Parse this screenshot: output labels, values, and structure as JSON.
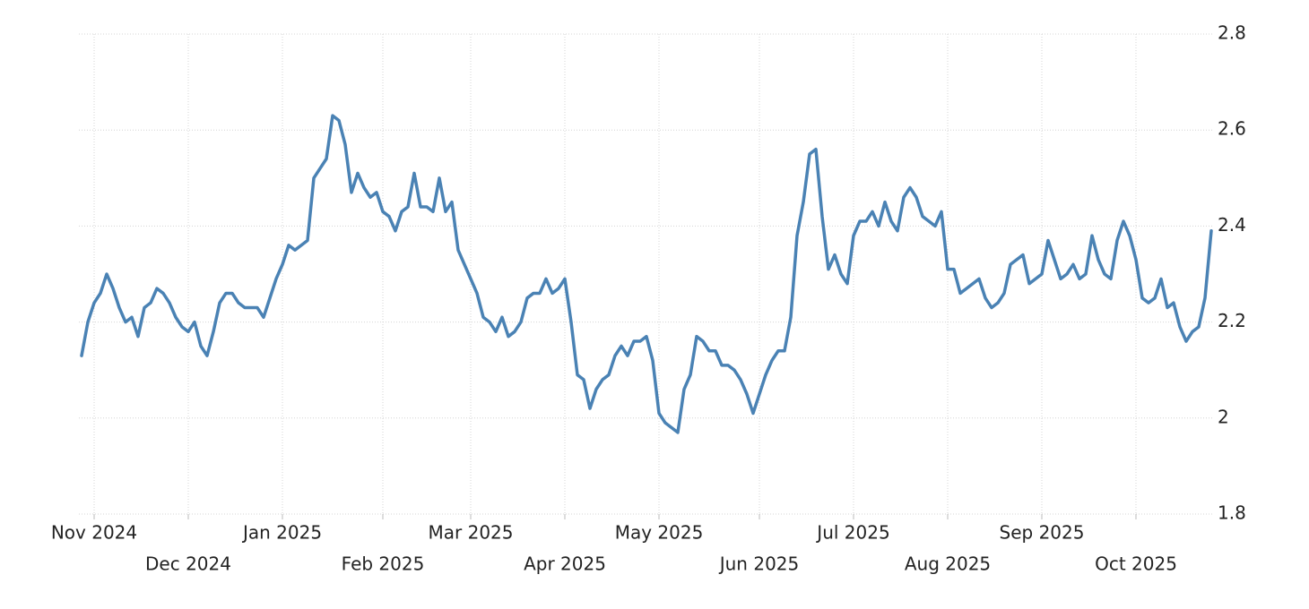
{
  "chart_data": {
    "type": "line",
    "categories": [
      null,
      null,
      "Nov 2024",
      null,
      null,
      null,
      null,
      null,
      null,
      null,
      null,
      null,
      null,
      null,
      null,
      null,
      null,
      "Dec 2024",
      null,
      null,
      null,
      null,
      null,
      null,
      null,
      null,
      null,
      null,
      null,
      null,
      null,
      null,
      "Jan 2025",
      null,
      null,
      null,
      null,
      null,
      null,
      null,
      null,
      null,
      null,
      null,
      null,
      null,
      null,
      null,
      "Feb 2025",
      null,
      null,
      null,
      null,
      null,
      null,
      null,
      null,
      null,
      null,
      null,
      null,
      null,
      "Mar 2025",
      null,
      null,
      null,
      null,
      null,
      null,
      null,
      null,
      null,
      null,
      null,
      null,
      null,
      null,
      "Apr 2025",
      null,
      null,
      null,
      null,
      null,
      null,
      null,
      null,
      null,
      null,
      null,
      null,
      null,
      null,
      "May 2025",
      null,
      null,
      null,
      null,
      null,
      null,
      null,
      null,
      null,
      null,
      null,
      null,
      null,
      null,
      null,
      "Jun 2025",
      null,
      null,
      null,
      null,
      null,
      null,
      null,
      null,
      null,
      null,
      null,
      null,
      null,
      null,
      "Jul 2025",
      null,
      null,
      null,
      null,
      null,
      null,
      null,
      null,
      null,
      null,
      null,
      null,
      null,
      null,
      "Aug 2025",
      null,
      null,
      null,
      null,
      null,
      null,
      null,
      null,
      null,
      null,
      null,
      null,
      null,
      null,
      "Sep 2025",
      null,
      null,
      null,
      null,
      null,
      null,
      null,
      null,
      null,
      null,
      null,
      null,
      null,
      null,
      "Oct 2025",
      null,
      null,
      null,
      null,
      null,
      null,
      null,
      null,
      null,
      null,
      null,
      null
    ],
    "values": [
      2.13,
      2.2,
      2.24,
      2.26,
      2.3,
      2.27,
      2.23,
      2.2,
      2.21,
      2.17,
      2.23,
      2.24,
      2.27,
      2.26,
      2.24,
      2.21,
      2.19,
      2.18,
      2.2,
      2.15,
      2.13,
      2.18,
      2.24,
      2.26,
      2.26,
      2.24,
      2.23,
      2.23,
      2.23,
      2.21,
      2.25,
      2.29,
      2.32,
      2.36,
      2.35,
      2.36,
      2.37,
      2.5,
      2.52,
      2.54,
      2.63,
      2.62,
      2.57,
      2.47,
      2.51,
      2.48,
      2.46,
      2.47,
      2.43,
      2.42,
      2.39,
      2.43,
      2.44,
      2.51,
      2.44,
      2.44,
      2.43,
      2.5,
      2.43,
      2.45,
      2.35,
      2.32,
      2.29,
      2.26,
      2.21,
      2.2,
      2.18,
      2.21,
      2.17,
      2.18,
      2.2,
      2.25,
      2.26,
      2.26,
      2.29,
      2.26,
      2.27,
      2.29,
      2.2,
      2.09,
      2.08,
      2.02,
      2.06,
      2.08,
      2.09,
      2.13,
      2.15,
      2.13,
      2.16,
      2.16,
      2.17,
      2.12,
      2.01,
      1.99,
      1.98,
      1.97,
      2.06,
      2.09,
      2.17,
      2.16,
      2.14,
      2.14,
      2.11,
      2.11,
      2.1,
      2.08,
      2.05,
      2.01,
      2.05,
      2.09,
      2.12,
      2.14,
      2.14,
      2.21,
      2.38,
      2.45,
      2.55,
      2.56,
      2.42,
      2.31,
      2.34,
      2.3,
      2.28,
      2.38,
      2.41,
      2.41,
      2.43,
      2.4,
      2.45,
      2.41,
      2.39,
      2.46,
      2.48,
      2.46,
      2.42,
      2.41,
      2.4,
      2.43,
      2.31,
      2.31,
      2.26,
      2.27,
      2.28,
      2.29,
      2.25,
      2.23,
      2.24,
      2.26,
      2.32,
      2.33,
      2.34,
      2.28,
      2.29,
      2.3,
      2.37,
      2.33,
      2.29,
      2.3,
      2.32,
      2.29,
      2.3,
      2.38,
      2.33,
      2.3,
      2.29,
      2.37,
      2.41,
      2.38,
      2.33,
      2.25,
      2.24,
      2.25,
      2.29,
      2.23,
      2.24,
      2.19,
      2.16,
      2.18,
      2.19,
      2.25,
      2.39
    ],
    "color": "#4a82b4",
    "ylim": [
      1.8,
      2.8
    ],
    "yticks": [
      1.8,
      2,
      2.2,
      2.4,
      2.6,
      2.8
    ],
    "grid": true
  }
}
